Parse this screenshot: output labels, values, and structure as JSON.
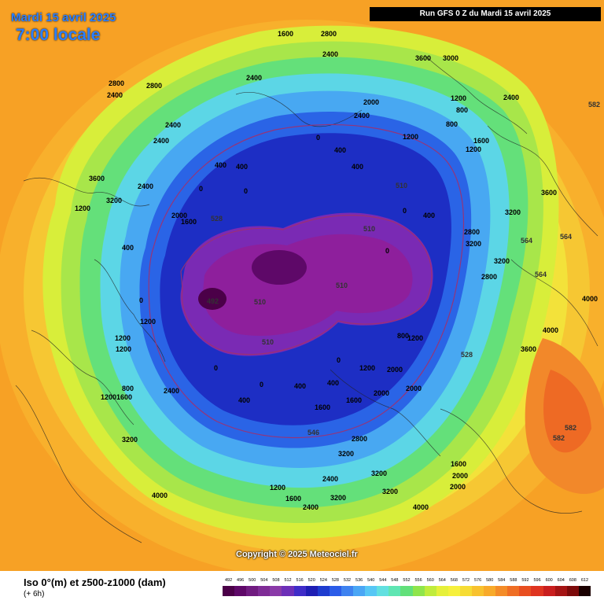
{
  "header": {
    "date": "Mardi 15 avril 2025",
    "time": "7:00 locale",
    "run": "Run GFS 0 Z du Mardi 15 avril 2025"
  },
  "copyright": "Copyright © 2025 Meteociel.fr",
  "legend": {
    "title": "Iso 0°(m) et z500-z1000 (dam)",
    "subtitle": "(+ 6h)",
    "scale_values": [
      "492",
      "496",
      "500",
      "504",
      "508",
      "512",
      "516",
      "520",
      "524",
      "528",
      "532",
      "536",
      "540",
      "544",
      "548",
      "552",
      "556",
      "560",
      "564",
      "568",
      "572",
      "576",
      "580",
      "584",
      "588",
      "592",
      "596",
      "600",
      "604",
      "608",
      "612"
    ],
    "scale_colors": [
      "#4b0048",
      "#5e0868",
      "#701b80",
      "#7f2c96",
      "#8a3aa8",
      "#6d2fb8",
      "#3f2cc8",
      "#1e1eb4",
      "#1e3ccf",
      "#2b5ce8",
      "#3e82f0",
      "#4aa6f5",
      "#57c7f5",
      "#62e0e0",
      "#5fe6b3",
      "#62e07a",
      "#8fe54b",
      "#c0ec3c",
      "#e6f03a",
      "#f6f03c",
      "#f6dc34",
      "#f8c22e",
      "#f8aa2a",
      "#f48c28",
      "#ef6e24",
      "#e84e20",
      "#df3420",
      "#c91e1e",
      "#a51414",
      "#7c0a0a",
      "#1a0000"
    ]
  },
  "map_labels": {
    "iso0": [
      "2800",
      "2400",
      "1600",
      "2000",
      "1200",
      "800",
      "400",
      "0",
      "3200",
      "3600",
      "4000"
    ],
    "thickness": [
      "492",
      "510",
      "528",
      "546",
      "564",
      "582"
    ]
  }
}
